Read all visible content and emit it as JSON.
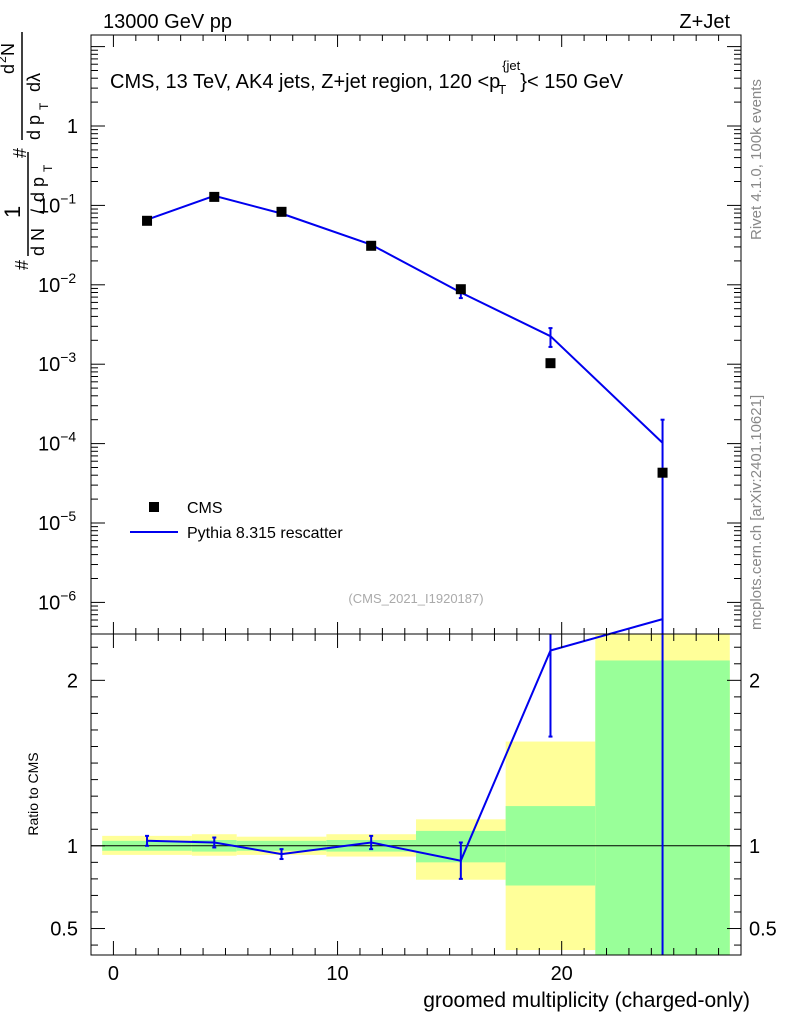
{
  "header": {
    "left": "13000 GeV pp",
    "right": "Z+Jet"
  },
  "plot_title": {
    "main": "CMS, 13 TeV, AK4 jets, Z+jet region, 120 <",
    "p": "p",
    "sub": "T",
    "sup": "{jet",
    "brace": "}",
    "tail": "< 150 GeV"
  },
  "side_labels": {
    "rivet": "Rivet 4.1.0,  100k events",
    "mcplots": "mcplots.cern.ch [arXiv:2401.10621]"
  },
  "watermark": "(CMS_2021_I1920187)",
  "ylabel_top": {
    "hash1": "#",
    "one": "1",
    "dN": "d N",
    "slash": "/",
    "dp": "d p",
    "T1": "T",
    "hash2": "#",
    "d2N": "d",
    "two": "2",
    "N": "N",
    "dpT": "d p",
    "T2": "T",
    "dlambda": "dλ"
  },
  "ylabel_bottom": "Ratio to CMS",
  "xlabel": "groomed multiplicity (charged-only)",
  "legend": [
    {
      "label": "CMS",
      "style": "marker",
      "color": "#000000"
    },
    {
      "label": "Pythia 8.315 rescatter",
      "style": "line",
      "color": "#0000ee"
    }
  ],
  "colors": {
    "mc": "#0000ee",
    "band_inner": "#99ff99",
    "band_outer": "#ffff99",
    "data": "#000000"
  },
  "chart_data": [
    {
      "type": "scatter",
      "panel": "main",
      "yscale": "log",
      "xlim": [
        -1,
        28
      ],
      "ylim": [
        4e-07,
        14
      ],
      "yticks": [
        {
          "value": 1e-06,
          "base": "10",
          "exp": "−6"
        },
        {
          "value": 1e-05,
          "base": "10",
          "exp": "−5"
        },
        {
          "value": 0.0001,
          "base": "10",
          "exp": "−4"
        },
        {
          "value": 0.001,
          "base": "10",
          "exp": "−3"
        },
        {
          "value": 0.01,
          "base": "10",
          "exp": "−2"
        },
        {
          "value": 0.1,
          "base": "10",
          "exp": "−1"
        },
        {
          "value": 1,
          "base": "1",
          "exp": ""
        }
      ],
      "series": [
        {
          "name": "CMS",
          "x": [
            1.5,
            4.5,
            7.5,
            11.5,
            15.5,
            19.5,
            24.5
          ],
          "y": [
            0.064,
            0.128,
            0.083,
            0.031,
            0.0088,
            0.00103,
            4.3e-05
          ]
        },
        {
          "name": "Pythia 8.315 rescatter",
          "x": [
            1.5,
            4.5,
            7.5,
            11.5,
            15.5,
            19.5,
            24.5
          ],
          "y": [
            0.066,
            0.132,
            0.079,
            0.032,
            0.008,
            0.00225,
            0.000102
          ],
          "err_low": [
            0.002,
            0.003,
            0.002,
            0.001,
            0.0012,
            0.0006,
            0.000102
          ],
          "err_high": [
            0.002,
            0.003,
            0.002,
            0.001,
            0.0012,
            0.0006,
            9.8e-05
          ]
        }
      ]
    },
    {
      "type": "line",
      "panel": "ratio",
      "ylabel": "Ratio to CMS",
      "xlabel": "groomed multiplicity (charged-only)",
      "xlim": [
        -1,
        28
      ],
      "ylim": [
        0.34,
        2.28
      ],
      "xticks": [
        0,
        10,
        20
      ],
      "yticks": [
        0.5,
        1,
        2
      ],
      "bands": [
        {
          "x0": -0.5,
          "x1": 3.5,
          "inner": [
            0.97,
            1.03
          ],
          "outer": [
            0.945,
            1.06
          ]
        },
        {
          "x0": 3.5,
          "x1": 5.5,
          "inner": [
            0.965,
            1.035
          ],
          "outer": [
            0.94,
            1.07
          ]
        },
        {
          "x0": 5.5,
          "x1": 9.5,
          "inner": [
            0.97,
            1.03
          ],
          "outer": [
            0.945,
            1.055
          ]
        },
        {
          "x0": 9.5,
          "x1": 13.5,
          "inner": [
            0.965,
            1.035
          ],
          "outer": [
            0.935,
            1.07
          ]
        },
        {
          "x0": 13.5,
          "x1": 17.5,
          "inner": [
            0.9,
            1.09
          ],
          "outer": [
            0.795,
            1.16
          ]
        },
        {
          "x0": 17.5,
          "x1": 21.5,
          "inner": [
            0.76,
            1.24
          ],
          "outer": [
            0.37,
            1.63
          ]
        },
        {
          "x0": 21.5,
          "x1": 27.5,
          "inner": [
            0.34,
            2.12
          ],
          "outer": [
            0.34,
            2.28
          ]
        }
      ],
      "series": [
        {
          "name": "Pythia 8.315 rescatter",
          "x": [
            1.5,
            4.5,
            7.5,
            11.5,
            15.5,
            19.5,
            24.5
          ],
          "y": [
            1.03,
            1.02,
            0.95,
            1.02,
            0.91,
            2.18,
            2.37
          ],
          "err_low": [
            0.03,
            0.03,
            0.03,
            0.04,
            0.11,
            0.52,
            2.37
          ],
          "err_high": [
            0.03,
            0.03,
            0.03,
            0.04,
            0.11,
            0.52,
            2.0
          ]
        }
      ]
    }
  ]
}
